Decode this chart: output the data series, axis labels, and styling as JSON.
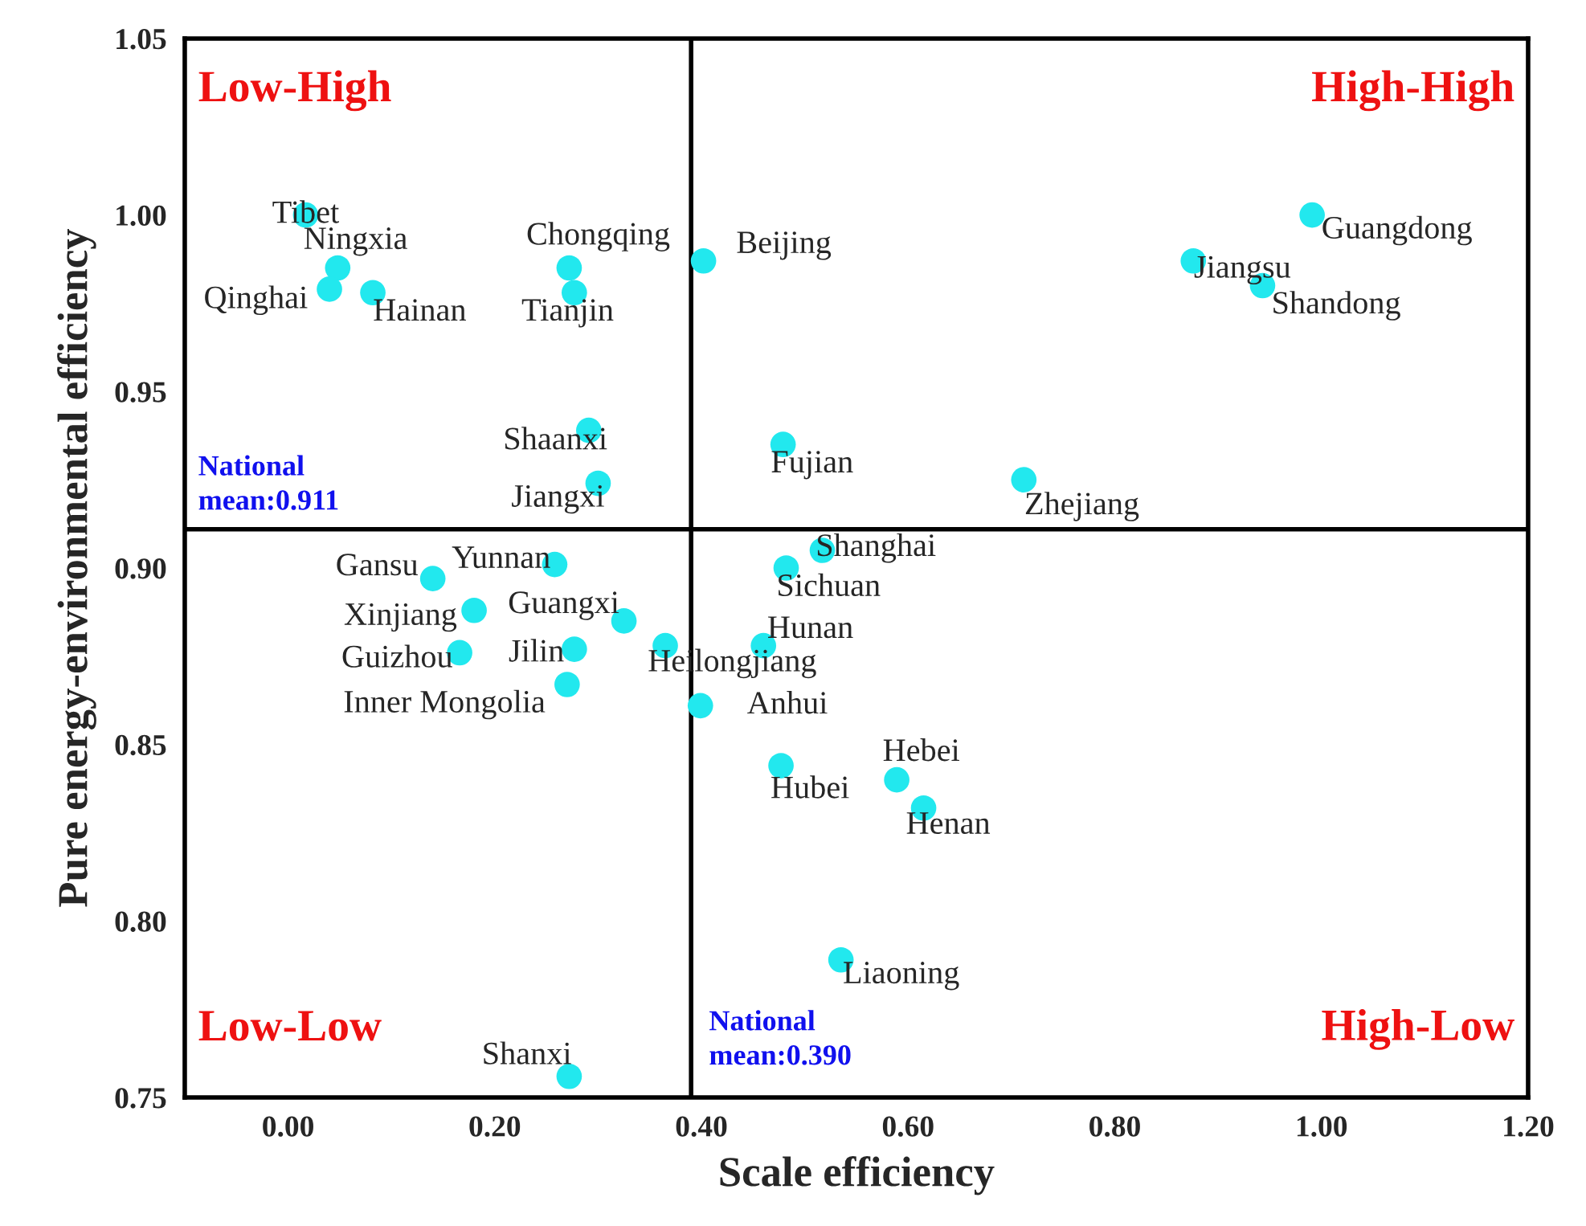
{
  "chart_data": {
    "type": "scatter",
    "xlabel": "Scale efficiency",
    "ylabel": "Pure energy-environmental efficiency",
    "xlim": [
      -0.1,
      1.2
    ],
    "ylim": [
      0.75,
      1.05
    ],
    "xticks": [
      {
        "value": 0,
        "label": "0.00"
      },
      {
        "value": 0.2,
        "label": "0.20"
      },
      {
        "value": 0.4,
        "label": "0.40"
      },
      {
        "value": 0.6,
        "label": "0.60"
      },
      {
        "value": 0.8,
        "label": "0.80"
      },
      {
        "value": 1.0,
        "label": "1.00"
      },
      {
        "value": 1.2,
        "label": "1.20"
      }
    ],
    "yticks": [
      {
        "value": 0.75,
        "label": "0.75"
      },
      {
        "value": 0.8,
        "label": "0.80"
      },
      {
        "value": 0.85,
        "label": "0.85"
      },
      {
        "value": 0.9,
        "label": "0.90"
      },
      {
        "value": 0.95,
        "label": "0.95"
      },
      {
        "value": 1.0,
        "label": "1.00"
      },
      {
        "value": 1.05,
        "label": "1.05"
      }
    ],
    "grid": false,
    "legend": false,
    "marker": "circle",
    "series": [
      {
        "color": "#22e8ee",
        "x": [
          0.017,
          0.048,
          0.04,
          0.082,
          0.272,
          0.277,
          0.402,
          0.291,
          0.3,
          0.479,
          0.712,
          0.876,
          0.943,
          0.991,
          0.14,
          0.258,
          0.18,
          0.325,
          0.166,
          0.277,
          0.365,
          0.27,
          0.517,
          0.482,
          0.46,
          0.399,
          0.477,
          0.589,
          0.615,
          0.535,
          0.272
        ],
        "values": [
          1.0,
          0.985,
          0.979,
          0.978,
          0.985,
          0.978,
          0.987,
          0.939,
          0.924,
          0.935,
          0.925,
          0.987,
          0.98,
          1.0,
          0.897,
          0.901,
          0.888,
          0.885,
          0.876,
          0.877,
          0.878,
          0.867,
          0.905,
          0.9,
          0.878,
          0.861,
          0.844,
          0.84,
          0.832,
          0.789,
          0.756
        ]
      }
    ],
    "ref_lines": [
      {
        "axis": "x",
        "value": 0.39,
        "label": "National\nmean:0.390",
        "color": "#000000"
      },
      {
        "axis": "y",
        "value": 0.911,
        "label": "National\nmean:0.911",
        "color": "#000000"
      }
    ],
    "annotations": [
      "Low-High",
      "High-High",
      "Low-Low",
      "High-Low",
      {
        "text": "Tibet",
        "x": 0.017,
        "y": 1.0
      },
      {
        "text": "Ningxia",
        "x": 0.048,
        "y": 0.985
      },
      {
        "text": "Qinghai",
        "x": 0.04,
        "y": 0.979
      },
      {
        "text": "Hainan",
        "x": 0.082,
        "y": 0.978
      },
      {
        "text": "Chongqing",
        "x": 0.272,
        "y": 0.985
      },
      {
        "text": "Tianjin",
        "x": 0.277,
        "y": 0.978
      },
      {
        "text": "Beijing",
        "x": 0.402,
        "y": 0.987
      },
      {
        "text": "Shaanxi",
        "x": 0.291,
        "y": 0.939
      },
      {
        "text": "Jiangxi",
        "x": 0.3,
        "y": 0.924
      },
      {
        "text": "Fujian",
        "x": 0.479,
        "y": 0.935
      },
      {
        "text": "Zhejiang",
        "x": 0.712,
        "y": 0.925
      },
      {
        "text": "Jiangsu",
        "x": 0.876,
        "y": 0.987
      },
      {
        "text": "Shandong",
        "x": 0.943,
        "y": 0.98
      },
      {
        "text": "Guangdong",
        "x": 0.991,
        "y": 1.0
      },
      {
        "text": "Gansu",
        "x": 0.14,
        "y": 0.897
      },
      {
        "text": "Yunnan",
        "x": 0.258,
        "y": 0.901
      },
      {
        "text": "Xinjiang",
        "x": 0.18,
        "y": 0.888
      },
      {
        "text": "Guangxi",
        "x": 0.325,
        "y": 0.885
      },
      {
        "text": "Guizhou",
        "x": 0.166,
        "y": 0.876
      },
      {
        "text": "Jilin",
        "x": 0.277,
        "y": 0.877
      },
      {
        "text": "Heilongjiang",
        "x": 0.365,
        "y": 0.878
      },
      {
        "text": "Inner Mongolia",
        "x": 0.27,
        "y": 0.867
      },
      {
        "text": "Shanghai",
        "x": 0.517,
        "y": 0.905
      },
      {
        "text": "Sichuan",
        "x": 0.482,
        "y": 0.9
      },
      {
        "text": "Hunan",
        "x": 0.46,
        "y": 0.878
      },
      {
        "text": "Anhui",
        "x": 0.399,
        "y": 0.861
      },
      {
        "text": "Hubei",
        "x": 0.477,
        "y": 0.844
      },
      {
        "text": "Hebei",
        "x": 0.589,
        "y": 0.84
      },
      {
        "text": "Henan",
        "x": 0.615,
        "y": 0.832
      },
      {
        "text": "Liaoning",
        "x": 0.535,
        "y": 0.789
      },
      {
        "text": "Shanxi",
        "x": 0.272,
        "y": 0.756
      }
    ]
  }
}
